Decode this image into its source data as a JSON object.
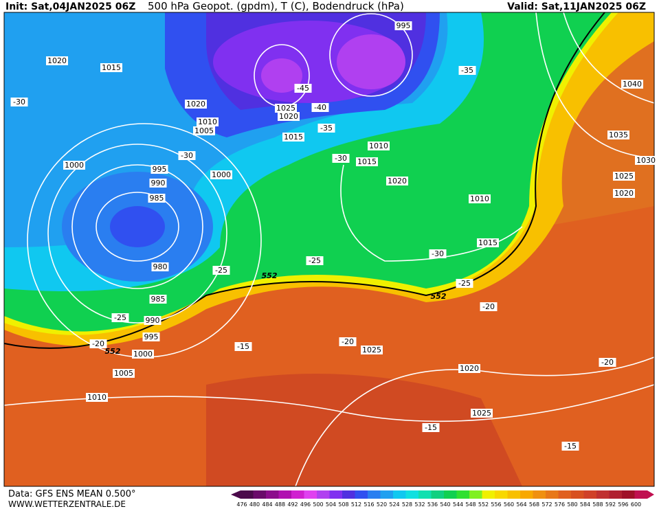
{
  "header": {
    "init": "Init: Sat,04JAN2025 06Z",
    "title": "500 hPa Geopot. (gpdm), T (C), Bodendruck (hPa)",
    "valid": "Valid: Sat,11JAN2025 06Z"
  },
  "footer": {
    "data": "Data: GFS ENS MEAN 0.500°",
    "site": "WWW.WETTERZENTRALE.DE"
  },
  "pressure_labels": [
    "1020",
    "1015",
    "1020",
    "1010",
    "1005",
    "1000",
    "995",
    "990",
    "985",
    "980",
    "985",
    "990",
    "995",
    "1000",
    "1005",
    "1010",
    "1025",
    "1020",
    "1015",
    "1010",
    "1015",
    "1020",
    "1010",
    "1015",
    "995",
    "1040",
    "1035",
    "1030",
    "1025",
    "1020",
    "1025",
    "1020",
    "1025",
    "1000"
  ],
  "temperature_labels": [
    "-30",
    "-30",
    "-30",
    "-35",
    "-40",
    "-45",
    "-35",
    "-25",
    "-25",
    "-30",
    "-25",
    "-20",
    "-25",
    "-20",
    "-15",
    "-20",
    "-20",
    "-15",
    "-15"
  ],
  "geopotential_labels": [
    "552",
    "552",
    "552"
  ],
  "colorbar": {
    "labels": [
      476,
      480,
      484,
      488,
      492,
      496,
      500,
      504,
      508,
      512,
      516,
      520,
      524,
      528,
      532,
      536,
      540,
      544,
      548,
      552,
      556,
      560,
      564,
      568,
      572,
      576,
      580,
      584,
      588,
      592,
      596,
      600
    ],
    "colors": [
      "#4b0a4b",
      "#6a0a6a",
      "#8c0c8c",
      "#b010b0",
      "#d020d0",
      "#e040f0",
      "#b040f0",
      "#8030f0",
      "#5030e0",
      "#3050f0",
      "#2a7ef0",
      "#20a0f0",
      "#10c8f0",
      "#10e0e0",
      "#10e0b0",
      "#10d080",
      "#10d050",
      "#30e030",
      "#80f020",
      "#f0f000",
      "#f8d800",
      "#f8c000",
      "#f8a800",
      "#f09010",
      "#e87818",
      "#e06020",
      "#d85020",
      "#d04028",
      "#c03030",
      "#b02030",
      "#a01028",
      "#c01050"
    ]
  }
}
